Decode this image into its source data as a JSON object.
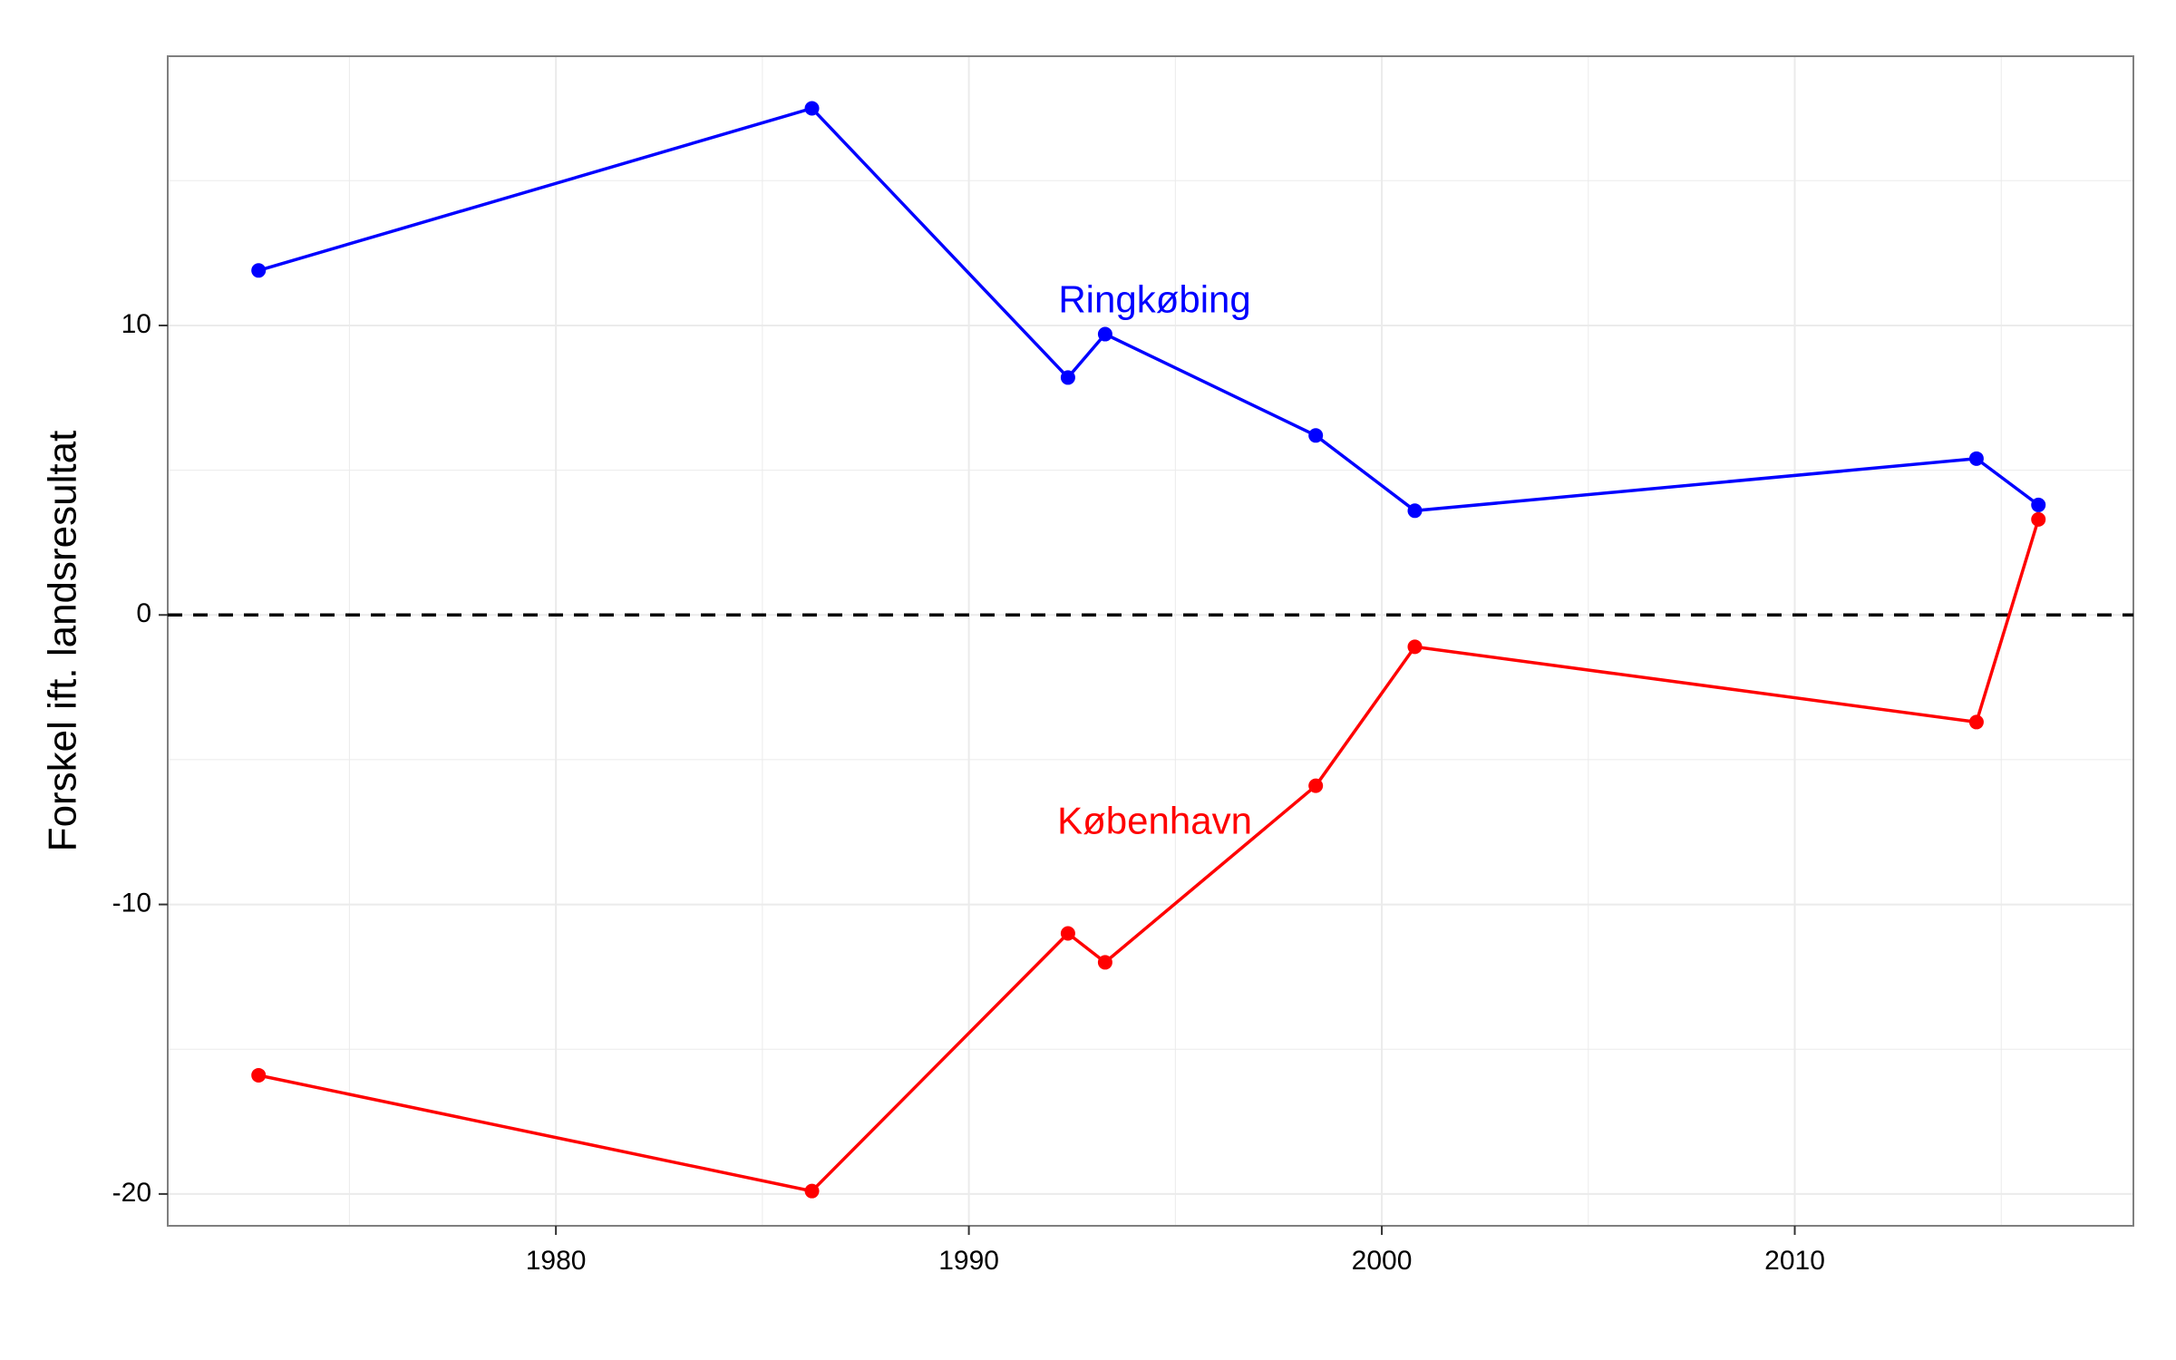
{
  "chart_data": {
    "type": "line",
    "title": "",
    "xlabel": "",
    "ylabel": "Forskel ift. landsresultat",
    "xlim": [
      1970.6,
      2018.2
    ],
    "ylim": [
      -21.1,
      19.3
    ],
    "x_ticks": [
      1980,
      1990,
      2000,
      2010
    ],
    "y_ticks": [
      -20,
      -10,
      0,
      10
    ],
    "grid": true,
    "reference_line": {
      "y": 0,
      "style": "dashed",
      "color": "#000000"
    },
    "legend": "none",
    "series": [
      {
        "name": "Ringkøbing",
        "color": "#0000FF",
        "x": [
          1972.8,
          1986.2,
          1992.4,
          1993.3,
          1998.4,
          2000.8,
          2014.4,
          2015.9
        ],
        "y": [
          11.9,
          17.5,
          8.2,
          9.7,
          6.2,
          3.6,
          5.4,
          3.8
        ]
      },
      {
        "name": "København",
        "color": "#FF0000",
        "x": [
          1972.8,
          1986.2,
          1992.4,
          1993.3,
          1998.4,
          2000.8,
          2014.4,
          2015.9
        ],
        "y": [
          -15.9,
          -19.9,
          -11.0,
          -12.0,
          -5.9,
          -1.1,
          -3.7,
          3.3
        ]
      }
    ],
    "annotations": [
      {
        "text": "Ringkøbing",
        "x": 1994.5,
        "y": 10.8,
        "color": "#0000FF"
      },
      {
        "text": "København",
        "x": 1994.5,
        "y": -7.2,
        "color": "#FF0000"
      }
    ]
  }
}
